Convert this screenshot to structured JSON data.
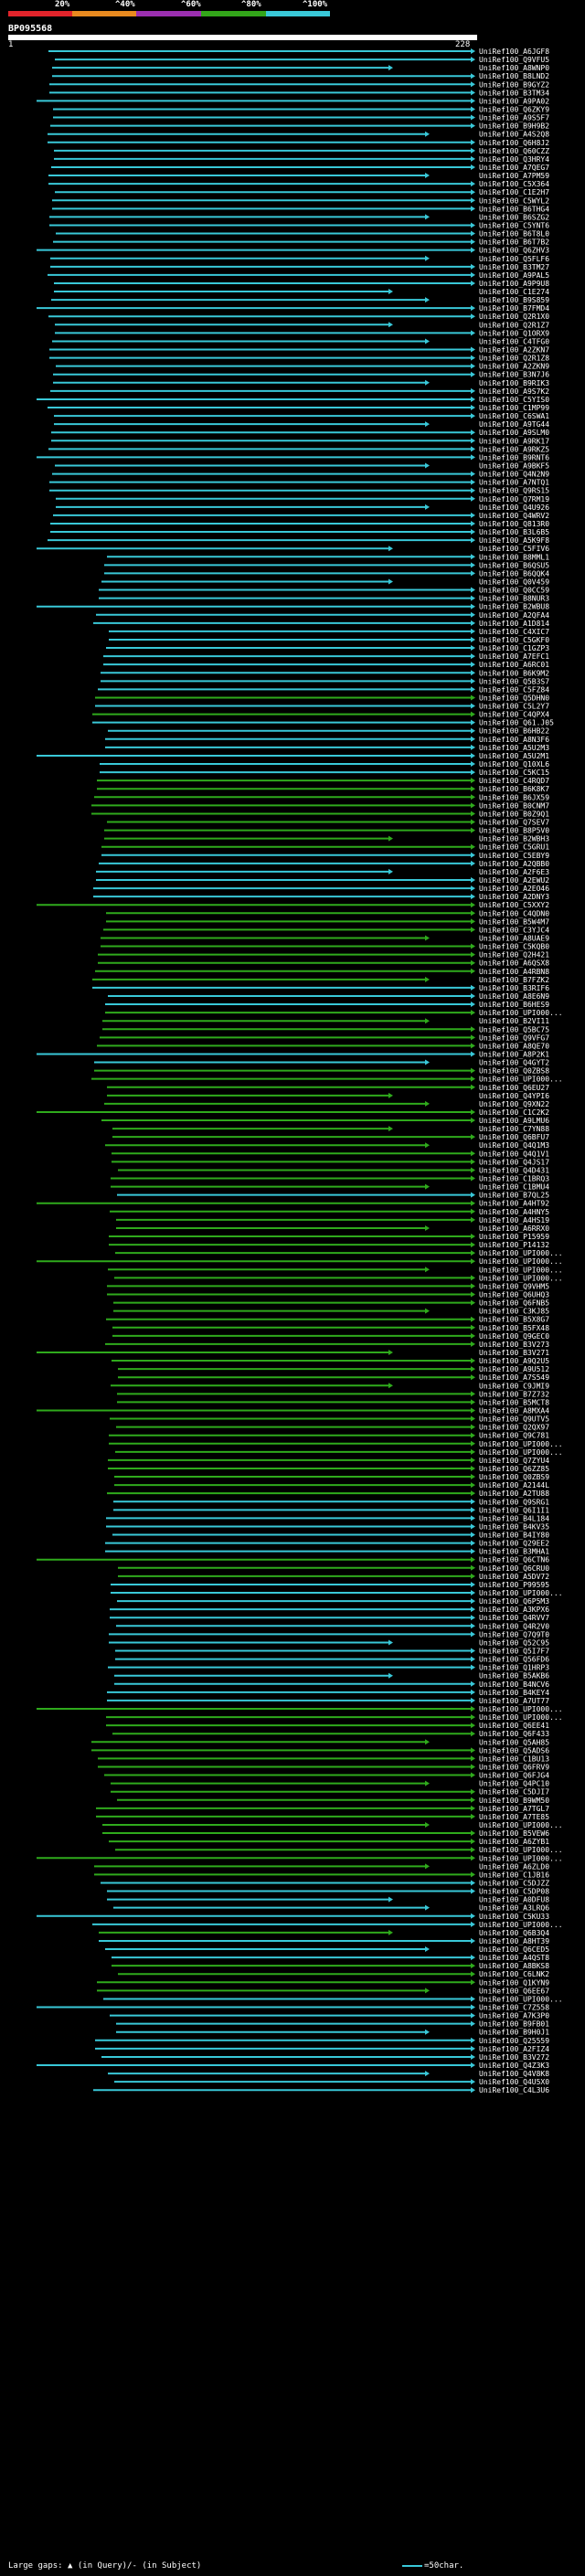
{
  "scale": {
    "labels": [
      "20%",
      "^40%",
      "^60%",
      "^80%",
      "^100%"
    ],
    "colors": [
      "#e2242b",
      "#e98a1f",
      "#9b2fb0",
      "#33a51a",
      "#39c8d8"
    ]
  },
  "query": {
    "id": "BP095568",
    "start": "1",
    "end": "228"
  },
  "hit_colors": {
    "cyan": "#39c8d8",
    "green": "#2faa1c"
  },
  "hits": [
    {
      "label": "UniRef100_A6JGF8",
      "c": "c"
    },
    {
      "label": "UniRef100_Q9VFU5",
      "c": "c"
    },
    {
      "label": "UniRef100_A8WNP0",
      "c": "c"
    },
    {
      "label": "UniRef100_B8LND2",
      "c": "c"
    },
    {
      "label": "UniRef100_B9GYZ2",
      "c": "c"
    },
    {
      "label": "UniRef100_B3TM34",
      "c": "c"
    },
    {
      "label": "UniRef100_A9PA02",
      "c": "c"
    },
    {
      "label": "UniRef100_Q6ZKY9",
      "c": "c"
    },
    {
      "label": "UniRef100_A9S5F7",
      "c": "c"
    },
    {
      "label": "UniRef100_B9H9B2",
      "c": "c"
    },
    {
      "label": "UniRef100_A4S2Q8",
      "c": "c"
    },
    {
      "label": "UniRef100_Q6H8J2",
      "c": "c"
    },
    {
      "label": "UniRef100_Q60CZZ",
      "c": "c"
    },
    {
      "label": "UniRef100_Q3HRY4",
      "c": "c"
    },
    {
      "label": "UniRef100_A7QEG7",
      "c": "c"
    },
    {
      "label": "UniRef100_A7PM59",
      "c": "c"
    },
    {
      "label": "UniRef100_C5X364",
      "c": "c"
    },
    {
      "label": "UniRef100_C1E2H7",
      "c": "c"
    },
    {
      "label": "UniRef100_C5WYL2",
      "c": "c"
    },
    {
      "label": "UniRef100_B6THG4",
      "c": "c"
    },
    {
      "label": "UniRef100_B6SZG2",
      "c": "c"
    },
    {
      "label": "UniRef100_C5YNT6",
      "c": "c"
    },
    {
      "label": "UniRef100_B6T8L0",
      "c": "c"
    },
    {
      "label": "UniRef100_B6T7B2",
      "c": "c"
    },
    {
      "label": "UniRef100_Q6ZHV3",
      "c": "c"
    },
    {
      "label": "UniRef100_Q5FLF6",
      "c": "c"
    },
    {
      "label": "UniRef100_B3TM27",
      "c": "c"
    },
    {
      "label": "UniRef100_A9PAL5",
      "c": "c"
    },
    {
      "label": "UniRef100_A9P9U8",
      "c": "c"
    },
    {
      "label": "UniRef100_C1E274",
      "c": "c"
    },
    {
      "label": "UniRef100_B9S859",
      "c": "c"
    },
    {
      "label": "UniRef100_B7FMD4",
      "c": "c"
    },
    {
      "label": "UniRef100_Q2R1X0",
      "c": "c"
    },
    {
      "label": "UniRef100_Q2R1Z7",
      "c": "c"
    },
    {
      "label": "UniRef100_Q1ORX9",
      "c": "c"
    },
    {
      "label": "UniRef100_C4TFG0",
      "c": "c"
    },
    {
      "label": "UniRef100_A2ZKN7",
      "c": "c"
    },
    {
      "label": "UniRef100_Q2R1Z8",
      "c": "c"
    },
    {
      "label": "UniRef100_A2ZKN9",
      "c": "c"
    },
    {
      "label": "UniRef100_B3N7J6",
      "c": "c"
    },
    {
      "label": "UniRef100_B9RIK3",
      "c": "c"
    },
    {
      "label": "UniRef100_A9S7K2",
      "c": "c"
    },
    {
      "label": "UniRef100_C5YIS0",
      "c": "c"
    },
    {
      "label": "UniRef100_C1MP99",
      "c": "c"
    },
    {
      "label": "UniRef100_C6SWA1",
      "c": "c"
    },
    {
      "label": "UniRef100_A9TG44",
      "c": "c"
    },
    {
      "label": "UniRef100_A9SLM0",
      "c": "c"
    },
    {
      "label": "UniRef100_A9RK17",
      "c": "c"
    },
    {
      "label": "UniRef100_A9RKZ5",
      "c": "c"
    },
    {
      "label": "UniRef100_B9RNT6",
      "c": "c"
    },
    {
      "label": "UniRef100_A9BKF5",
      "c": "c"
    },
    {
      "label": "UniRef100_Q4N2N9",
      "c": "c"
    },
    {
      "label": "UniRef100_A7NTQ1",
      "c": "c"
    },
    {
      "label": "UniRef100_Q9RS15",
      "c": "c"
    },
    {
      "label": "UniRef100_Q7RM19",
      "c": "c"
    },
    {
      "label": "UniRef100_Q4U926",
      "c": "c"
    },
    {
      "label": "UniRef100_Q4WRV2",
      "c": "c"
    },
    {
      "label": "UniRef100_Q813R0",
      "c": "c"
    },
    {
      "label": "UniRef100_B3L6B5",
      "c": "c"
    },
    {
      "label": "UniRef100_A5K9F8",
      "c": "c"
    },
    {
      "label": "UniRef100_C5FIV6",
      "c": "c"
    },
    {
      "label": "UniRef100_B8MML1",
      "c": "c"
    },
    {
      "label": "UniRef100_B6QSU5",
      "c": "c"
    },
    {
      "label": "UniRef100_B6QQK4",
      "c": "c"
    },
    {
      "label": "UniRef100_Q0V459",
      "c": "c"
    },
    {
      "label": "UniRef100_Q0CC59",
      "c": "c"
    },
    {
      "label": "UniRef100_B8NUR3",
      "c": "c"
    },
    {
      "label": "UniRef100_B2WBU8",
      "c": "c"
    },
    {
      "label": "UniRef100_A2QFA4",
      "c": "c"
    },
    {
      "label": "UniRef100_A1D814",
      "c": "c"
    },
    {
      "label": "UniRef100_C4XIC7",
      "c": "c"
    },
    {
      "label": "UniRef100_C5GKF0",
      "c": "c"
    },
    {
      "label": "UniRef100_C1GZP3",
      "c": "c"
    },
    {
      "label": "UniRef100_A7EFC1",
      "c": "c"
    },
    {
      "label": "UniRef100_A6RC01",
      "c": "c"
    },
    {
      "label": "UniRef100_B6K9M2",
      "c": "c"
    },
    {
      "label": "UniRef100_Q5B3S7",
      "c": "c"
    },
    {
      "label": "UniRef100_C5FZ84",
      "c": "c"
    },
    {
      "label": "UniRef100_Q5DHN0",
      "c": "g"
    },
    {
      "label": "UniRef100_C5L2Y7",
      "c": "c"
    },
    {
      "label": "UniRef100_C4QPX4",
      "c": "g"
    },
    {
      "label": "UniRef100_Q61.J05",
      "c": "c"
    },
    {
      "label": "UniRef100_B6HB22",
      "c": "c"
    },
    {
      "label": "UniRef100_A8N3F6",
      "c": "c"
    },
    {
      "label": "UniRef100_A5U2M3",
      "c": "c"
    },
    {
      "label": "UniRef100_A5U2M1",
      "c": "c"
    },
    {
      "label": "UniRef100_Q10XL6",
      "c": "c"
    },
    {
      "label": "UniRef100_C5KC15",
      "c": "c"
    },
    {
      "label": "UniRef100_C4RQD7",
      "c": "g"
    },
    {
      "label": "UniRef100_B6K8K7",
      "c": "g"
    },
    {
      "label": "UniRef100_B6JX59",
      "c": "g"
    },
    {
      "label": "UniRef100_B0CNM7",
      "c": "g"
    },
    {
      "label": "UniRef100_B0Z9Q1",
      "c": "g"
    },
    {
      "label": "UniRef100_Q7SEV7",
      "c": "g"
    },
    {
      "label": "UniRef100_B8P5V0",
      "c": "g"
    },
    {
      "label": "UniRef100_B2WBH3",
      "c": "g"
    },
    {
      "label": "UniRef100_C5GRU1",
      "c": "g"
    },
    {
      "label": "UniRef100_C5EBY9",
      "c": "c"
    },
    {
      "label": "UniRef100_A2QBB0",
      "c": "c"
    },
    {
      "label": "UniRef100_A2F6E3",
      "c": "c"
    },
    {
      "label": "UniRef100_A2EWU2",
      "c": "c"
    },
    {
      "label": "UniRef100_A2EO46",
      "c": "c"
    },
    {
      "label": "UniRef100_A2DNY3",
      "c": "c"
    },
    {
      "label": "UniRef100_C5XXY2",
      "c": "g"
    },
    {
      "label": "UniRef100_C4QDN0",
      "c": "g"
    },
    {
      "label": "UniRef100_B5W4M7",
      "c": "g"
    },
    {
      "label": "UniRef100_C3YJC4",
      "c": "g"
    },
    {
      "label": "UniRef100_A8UAE9",
      "c": "g"
    },
    {
      "label": "UniRef100_C5KQB0",
      "c": "g"
    },
    {
      "label": "UniRef100_Q2H421",
      "c": "g"
    },
    {
      "label": "UniRef100_A6QSX8",
      "c": "g"
    },
    {
      "label": "UniRef100_A4RBN8",
      "c": "g"
    },
    {
      "label": "UniRef100_B7FZK2",
      "c": "g"
    },
    {
      "label": "UniRef100_B3RIF6",
      "c": "c"
    },
    {
      "label": "UniRef100_A8E6N9",
      "c": "c"
    },
    {
      "label": "UniRef100_B6HES9",
      "c": "c"
    },
    {
      "label": "UniRef100_UPI000...",
      "c": "g"
    },
    {
      "label": "UniRef100_B2VI11",
      "c": "g"
    },
    {
      "label": "UniRef100_Q5BC75",
      "c": "g"
    },
    {
      "label": "UniRef100_Q9VFG7",
      "c": "g"
    },
    {
      "label": "UniRef100_A8QE70",
      "c": "g"
    },
    {
      "label": "UniRef100_A8P2K1",
      "c": "c"
    },
    {
      "label": "UniRef100_Q4GYT2",
      "c": "c"
    },
    {
      "label": "UniRef100_Q0ZBS8",
      "c": "g"
    },
    {
      "label": "UniRef100_UPI000...",
      "c": "g"
    },
    {
      "label": "UniRef100_Q6EU27",
      "c": "g"
    },
    {
      "label": "UniRef100_Q4YPI6",
      "c": "g"
    },
    {
      "label": "UniRef100_Q9XN22",
      "c": "g"
    },
    {
      "label": "UniRef100_C1C2K2",
      "c": "g"
    },
    {
      "label": "UniRef100_A9LMU6",
      "c": "g"
    },
    {
      "label": "UniRef100_C7YN88",
      "c": "g"
    },
    {
      "label": "UniRef100_Q6BFU7",
      "c": "g"
    },
    {
      "label": "UniRef100_Q4Q1M3",
      "c": "g"
    },
    {
      "label": "UniRef100_Q4Q1V1",
      "c": "g"
    },
    {
      "label": "UniRef100_Q4JS17",
      "c": "g"
    },
    {
      "label": "UniRef100_Q4D431",
      "c": "g"
    },
    {
      "label": "UniRef100_C1BRQ3",
      "c": "g"
    },
    {
      "label": "UniRef100_C1BMU4",
      "c": "g"
    },
    {
      "label": "UniRef100_B7QL25",
      "c": "c"
    },
    {
      "label": "UniRef100_A4HT92",
      "c": "g"
    },
    {
      "label": "UniRef100_A4HNY5",
      "c": "g"
    },
    {
      "label": "UniRef100_A4HS19",
      "c": "g"
    },
    {
      "label": "UniRef100_A6RRX0",
      "c": "g"
    },
    {
      "label": "UniRef100_P15959",
      "c": "g"
    },
    {
      "label": "UniRef100_P14132",
      "c": "g"
    },
    {
      "label": "UniRef100_UPI000...",
      "c": "g"
    },
    {
      "label": "UniRef100_UPI000...",
      "c": "g"
    },
    {
      "label": "UniRef100_UPI000...",
      "c": "g"
    },
    {
      "label": "UniRef100_UPI000...",
      "c": "g"
    },
    {
      "label": "UniRef100_Q9VHM5",
      "c": "g"
    },
    {
      "label": "UniRef100_Q6UHQ3",
      "c": "g"
    },
    {
      "label": "UniRef100_Q6FNB5",
      "c": "g"
    },
    {
      "label": "UniRef100_C3KJ85",
      "c": "g"
    },
    {
      "label": "UniRef100_B5X8G7",
      "c": "g"
    },
    {
      "label": "UniRef100_B5FX48",
      "c": "g"
    },
    {
      "label": "UniRef100_Q9GEC0",
      "c": "g"
    },
    {
      "label": "UniRef100_B3V273",
      "c": "g"
    },
    {
      "label": "UniRef100_B3V271",
      "c": "g"
    },
    {
      "label": "UniRef100_A9Q2U5",
      "c": "g"
    },
    {
      "label": "UniRef100_A9U512",
      "c": "g"
    },
    {
      "label": "UniRef100_A7S549",
      "c": "g"
    },
    {
      "label": "UniRef100_C9JMI9",
      "c": "g"
    },
    {
      "label": "UniRef100_B7Z732",
      "c": "g"
    },
    {
      "label": "UniRef100_B5MCT8",
      "c": "g"
    },
    {
      "label": "UniRef100_A8MXA4",
      "c": "g"
    },
    {
      "label": "UniRef100_Q9UTV5",
      "c": "g"
    },
    {
      "label": "UniRef100_Q2QX97",
      "c": "g"
    },
    {
      "label": "UniRef100_Q9C781",
      "c": "g"
    },
    {
      "label": "UniRef100_UPI000...",
      "c": "g"
    },
    {
      "label": "UniRef100_UPI000...",
      "c": "g"
    },
    {
      "label": "UniRef100_Q7ZYU4",
      "c": "g"
    },
    {
      "label": "UniRef100_Q6ZZ85",
      "c": "g"
    },
    {
      "label": "UniRef100_Q0ZBS9",
      "c": "g"
    },
    {
      "label": "UniRef100_A2144L",
      "c": "g"
    },
    {
      "label": "UniRef100_A2TU88",
      "c": "g"
    },
    {
      "label": "UniRef100_Q9SRG1",
      "c": "c"
    },
    {
      "label": "UniRef100_Q6I1I1",
      "c": "c"
    },
    {
      "label": "UniRef100_B4L184",
      "c": "c"
    },
    {
      "label": "UniRef100_B4KV35",
      "c": "c"
    },
    {
      "label": "UniRef100_B4IY80",
      "c": "c"
    },
    {
      "label": "UniRef100_Q29EE2",
      "c": "c"
    },
    {
      "label": "UniRef100_B3MHA1",
      "c": "c"
    },
    {
      "label": "UniRef100_Q6CTN6",
      "c": "g"
    },
    {
      "label": "UniRef100_Q6CRU0",
      "c": "g"
    },
    {
      "label": "UniRef100_A5DV72",
      "c": "g"
    },
    {
      "label": "UniRef100_P99595",
      "c": "c"
    },
    {
      "label": "UniRef100_UPI000...",
      "c": "c"
    },
    {
      "label": "UniRef100_Q6P5M3",
      "c": "c"
    },
    {
      "label": "UniRef100_A3KPX6",
      "c": "c"
    },
    {
      "label": "UniRef100_Q4RVV7",
      "c": "c"
    },
    {
      "label": "UniRef100_Q4R2V0",
      "c": "c"
    },
    {
      "label": "UniRef100_Q7Q9T0",
      "c": "c"
    },
    {
      "label": "UniRef100_Q52C95",
      "c": "c"
    },
    {
      "label": "UniRef100_Q5I7F7",
      "c": "c"
    },
    {
      "label": "UniRef100_Q56FD6",
      "c": "c"
    },
    {
      "label": "UniRef100_Q1HRP3",
      "c": "c"
    },
    {
      "label": "UniRef100_B5AKB6",
      "c": "c"
    },
    {
      "label": "UniRef100_B4NCV6",
      "c": "c"
    },
    {
      "label": "UniRef100_B4KEY4",
      "c": "c"
    },
    {
      "label": "UniRef100_A7UT77",
      "c": "c"
    },
    {
      "label": "UniRef100_UPI000...",
      "c": "g"
    },
    {
      "label": "UniRef100_UPI000...",
      "c": "g"
    },
    {
      "label": "UniRef100_Q6EE41",
      "c": "g"
    },
    {
      "label": "UniRef100_Q6F433",
      "c": "g"
    },
    {
      "label": "UniRef100_Q5AH85",
      "c": "g"
    },
    {
      "label": "UniRef100_Q5ADS6",
      "c": "g"
    },
    {
      "label": "UniRef100_C1BU13",
      "c": "g"
    },
    {
      "label": "UniRef100_Q6FRV9",
      "c": "g"
    },
    {
      "label": "UniRef100_Q6FJG4",
      "c": "g"
    },
    {
      "label": "UniRef100_Q4PC10",
      "c": "g"
    },
    {
      "label": "UniRef100_C5DJI7",
      "c": "g"
    },
    {
      "label": "UniRef100_B9WM50",
      "c": "g"
    },
    {
      "label": "UniRef100_A7TGL7",
      "c": "g"
    },
    {
      "label": "UniRef100_A7TE85",
      "c": "g"
    },
    {
      "label": "UniRef100_UPI000...",
      "c": "g"
    },
    {
      "label": "UniRef100_B5VEW6",
      "c": "g"
    },
    {
      "label": "UniRef100_A6ZYB1",
      "c": "g"
    },
    {
      "label": "UniRef100_UPI000...",
      "c": "g"
    },
    {
      "label": "UniRef100_UPI000...",
      "c": "g"
    },
    {
      "label": "UniRef100_A6ZLD0",
      "c": "g"
    },
    {
      "label": "UniRef100_C1JB16",
      "c": "g"
    },
    {
      "label": "UniRef100_C5DJZZ",
      "c": "c"
    },
    {
      "label": "UniRef100_C5DP08",
      "c": "c"
    },
    {
      "label": "UniRef100_A0DFU8",
      "c": "c"
    },
    {
      "label": "UniRef100_A3LRQ6",
      "c": "c"
    },
    {
      "label": "UniRef100_C5KU33",
      "c": "c"
    },
    {
      "label": "UniRef100_UPI000...",
      "c": "c"
    },
    {
      "label": "UniRef100_Q6B3Q4",
      "c": "g"
    },
    {
      "label": "UniRef100_A8HT39",
      "c": "c"
    },
    {
      "label": "UniRef100_Q6CED5",
      "c": "c"
    },
    {
      "label": "UniRef100_A4QST8",
      "c": "c"
    },
    {
      "label": "UniRef100_A8BKS8",
      "c": "g"
    },
    {
      "label": "UniRef100_C6LNK2",
      "c": "g"
    },
    {
      "label": "UniRef100_Q1KYN9",
      "c": "g"
    },
    {
      "label": "UniRef100_Q6EE67",
      "c": "g"
    },
    {
      "label": "UniRef100_UPI000...",
      "c": "c"
    },
    {
      "label": "UniRef100_C7Z558",
      "c": "c"
    },
    {
      "label": "UniRef100_A7K3P0",
      "c": "c"
    },
    {
      "label": "UniRef100_B9FB01",
      "c": "c"
    },
    {
      "label": "UniRef100_B9H0J1",
      "c": "c"
    },
    {
      "label": "UniRef100_Q25559",
      "c": "c"
    },
    {
      "label": "UniRef100_A2FIZ4",
      "c": "c"
    },
    {
      "label": "UniRef100_B3V272",
      "c": "c"
    },
    {
      "label": "UniRef100_Q4Z3K3",
      "c": "c"
    },
    {
      "label": "UniRef100_Q4V8K8",
      "c": "c"
    },
    {
      "label": "UniRef100_Q4U5X0",
      "c": "c"
    },
    {
      "label": "UniRef100_C4L3U6",
      "c": "c"
    }
  ],
  "footer": {
    "large_gaps": "Large gaps:",
    "legend": "(in Query)/- (in Subject)",
    "scale_note": "=50char."
  }
}
